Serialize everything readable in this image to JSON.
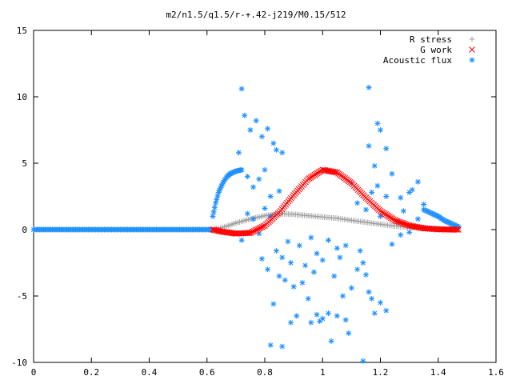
{
  "chart_data": {
    "type": "scatter",
    "title": "m2/n1.5/q1.5/r-+.42-j219/M0.15/512",
    "xlabel": "",
    "ylabel": "",
    "xlim": [
      0,
      1.6
    ],
    "ylim": [
      -10,
      15
    ],
    "x_ticks": [
      "0",
      "0.2",
      "0.4",
      "0.6",
      "0.8",
      "1",
      "1.2",
      "1.4",
      "1.6"
    ],
    "y_ticks": [
      "-10",
      "-5",
      "0",
      "5",
      "10",
      "15"
    ],
    "grid": false,
    "legend_position": "top-right",
    "series": [
      {
        "name": "R stress",
        "marker": "+",
        "color": "#a0a0a0",
        "curve": [
          [
            0.62,
            0.0
          ],
          [
            0.66,
            0.2
          ],
          [
            0.7,
            0.5
          ],
          [
            0.75,
            0.8
          ],
          [
            0.8,
            1.05
          ],
          [
            0.85,
            1.2
          ],
          [
            0.9,
            1.15
          ],
          [
            0.95,
            1.05
          ],
          [
            1.0,
            0.95
          ],
          [
            1.05,
            0.85
          ],
          [
            1.1,
            0.7
          ],
          [
            1.15,
            0.55
          ],
          [
            1.2,
            0.4
          ],
          [
            1.25,
            0.28
          ],
          [
            1.3,
            0.18
          ],
          [
            1.35,
            0.1
          ],
          [
            1.4,
            0.05
          ],
          [
            1.45,
            0.02
          ],
          [
            1.47,
            0.0
          ]
        ]
      },
      {
        "name": "G work",
        "marker": "x",
        "color": "#ff0000",
        "curve": [
          [
            0.62,
            0.0
          ],
          [
            0.65,
            -0.15
          ],
          [
            0.7,
            -0.3
          ],
          [
            0.75,
            -0.25
          ],
          [
            0.8,
            0.3
          ],
          [
            0.85,
            1.3
          ],
          [
            0.9,
            2.6
          ],
          [
            0.95,
            3.8
          ],
          [
            1.0,
            4.5
          ],
          [
            1.05,
            4.3
          ],
          [
            1.1,
            3.5
          ],
          [
            1.15,
            2.4
          ],
          [
            1.2,
            1.4
          ],
          [
            1.25,
            0.7
          ],
          [
            1.3,
            0.3
          ],
          [
            1.35,
            0.1
          ],
          [
            1.4,
            0.02
          ],
          [
            1.45,
            0.0
          ],
          [
            1.47,
            0.0
          ]
        ]
      },
      {
        "name": "Acoustic flux",
        "marker": "*",
        "color": "#1e90ff",
        "baseline": [
          [
            0.0,
            0.0
          ],
          [
            0.62,
            0.0
          ]
        ],
        "left_arc": [
          [
            0.62,
            1.0
          ],
          [
            0.63,
            2.0
          ],
          [
            0.64,
            2.8
          ],
          [
            0.65,
            3.3
          ],
          [
            0.66,
            3.7
          ],
          [
            0.67,
            4.0
          ],
          [
            0.68,
            4.2
          ],
          [
            0.7,
            4.4
          ],
          [
            0.72,
            4.5
          ]
        ],
        "right_tail": [
          [
            1.35,
            1.5
          ],
          [
            1.38,
            1.2
          ],
          [
            1.4,
            1.0
          ],
          [
            1.42,
            0.7
          ],
          [
            1.44,
            0.5
          ],
          [
            1.46,
            0.3
          ],
          [
            1.47,
            0.2
          ]
        ],
        "points": [
          [
            0.72,
            10.6
          ],
          [
            0.73,
            8.6
          ],
          [
            0.75,
            7.5
          ],
          [
            0.77,
            8.2
          ],
          [
            0.79,
            7.0
          ],
          [
            0.81,
            7.6
          ],
          [
            0.83,
            6.5
          ],
          [
            0.84,
            6.0
          ],
          [
            0.86,
            5.8
          ],
          [
            0.71,
            5.8
          ],
          [
            0.74,
            4.0
          ],
          [
            0.76,
            3.2
          ],
          [
            0.78,
            3.8
          ],
          [
            0.8,
            4.5
          ],
          [
            0.82,
            2.5
          ],
          [
            0.85,
            2.9
          ],
          [
            0.72,
            -0.8
          ],
          [
            0.74,
            1.2
          ],
          [
            0.76,
            0.8
          ],
          [
            0.78,
            -0.3
          ],
          [
            0.8,
            1.6
          ],
          [
            0.82,
            1.0
          ],
          [
            0.84,
            -1.6
          ],
          [
            0.86,
            -2.1
          ],
          [
            0.88,
            -0.9
          ],
          [
            0.79,
            -2.2
          ],
          [
            0.81,
            -3.0
          ],
          [
            0.83,
            -5.6
          ],
          [
            0.85,
            -3.5
          ],
          [
            0.87,
            -3.8
          ],
          [
            0.89,
            -2.5
          ],
          [
            0.9,
            -4.3
          ],
          [
            0.82,
            -8.7
          ],
          [
            0.86,
            -8.8
          ],
          [
            0.89,
            -7.0
          ],
          [
            0.91,
            -6.5
          ],
          [
            0.93,
            -4.0
          ],
          [
            0.95,
            -5.2
          ],
          [
            0.96,
            -7.0
          ],
          [
            0.97,
            -3.2
          ],
          [
            0.92,
            -1.2
          ],
          [
            0.94,
            -2.7
          ],
          [
            0.96,
            -0.6
          ],
          [
            0.98,
            -1.8
          ],
          [
            1.0,
            -2.3
          ],
          [
            1.02,
            -0.8
          ],
          [
            1.04,
            -3.5
          ],
          [
            1.05,
            -1.4
          ],
          [
            0.98,
            -6.4
          ],
          [
            0.99,
            -6.9
          ],
          [
            1.0,
            -6.7
          ],
          [
            1.02,
            -6.3
          ],
          [
            1.03,
            -8.4
          ],
          [
            1.05,
            -6.5
          ],
          [
            1.07,
            -5.0
          ],
          [
            1.08,
            -6.8
          ],
          [
            1.09,
            -7.8
          ],
          [
            1.06,
            -2.1
          ],
          [
            1.08,
            -1.2
          ],
          [
            1.1,
            -4.4
          ],
          [
            1.12,
            -3.0
          ],
          [
            1.13,
            -1.6
          ],
          [
            1.14,
            -2.5
          ],
          [
            1.15,
            -3.4
          ],
          [
            1.16,
            -4.7
          ],
          [
            1.17,
            -5.2
          ],
          [
            1.14,
            -9.9
          ],
          [
            1.18,
            -6.3
          ],
          [
            1.2,
            -5.5
          ],
          [
            1.22,
            -6.1
          ],
          [
            1.1,
            3.5
          ],
          [
            1.12,
            2.0
          ],
          [
            1.15,
            1.5
          ],
          [
            1.16,
            6.3
          ],
          [
            1.17,
            2.8
          ],
          [
            1.18,
            4.8
          ],
          [
            1.19,
            3.3
          ],
          [
            1.16,
            10.7
          ],
          [
            1.19,
            8.0
          ],
          [
            1.2,
            7.5
          ],
          [
            1.22,
            6.1
          ],
          [
            1.2,
            1.0
          ],
          [
            1.22,
            2.5
          ],
          [
            1.24,
            4.2
          ],
          [
            1.26,
            0.6
          ],
          [
            1.27,
            2.4
          ],
          [
            1.28,
            1.4
          ],
          [
            1.3,
            2.8
          ],
          [
            1.31,
            3.0
          ],
          [
            1.33,
            3.6
          ],
          [
            1.24,
            -1.1
          ],
          [
            1.27,
            -0.4
          ],
          [
            1.3,
            -0.2
          ],
          [
            1.33,
            0.8
          ],
          [
            1.35,
            1.9
          ]
        ]
      }
    ]
  }
}
